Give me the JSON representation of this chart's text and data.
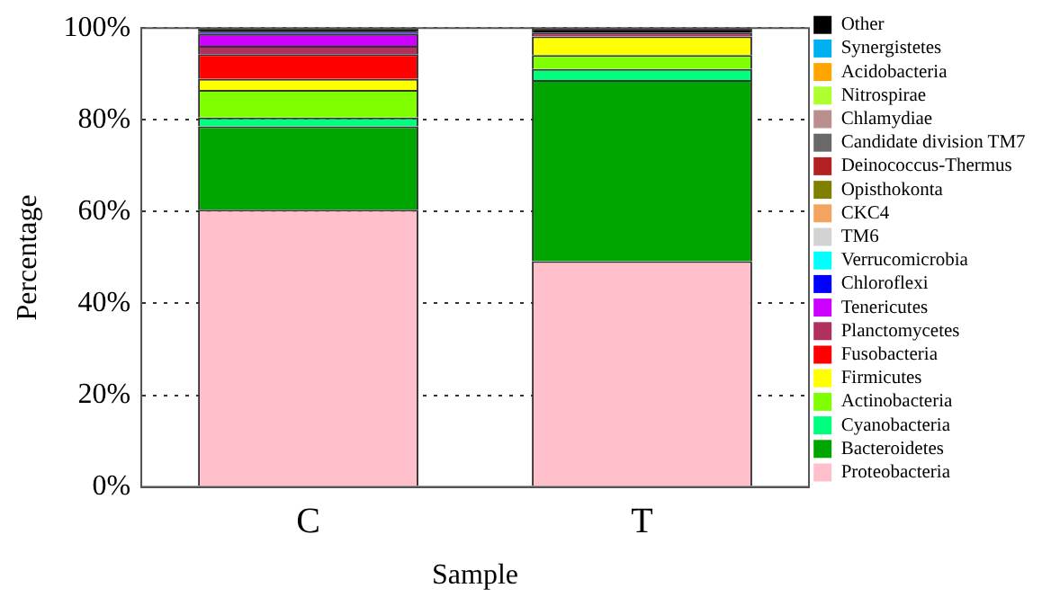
{
  "chart_data": {
    "type": "bar",
    "stacked": true,
    "xlabel": "Sample",
    "ylabel": "Percentage",
    "categories": [
      "C",
      "T"
    ],
    "ylim": [
      0,
      100
    ],
    "yticks": [
      {
        "value": 0,
        "label": "0%"
      },
      {
        "value": 20,
        "label": "20%"
      },
      {
        "value": 40,
        "label": "40%"
      },
      {
        "value": 60,
        "label": "60%"
      },
      {
        "value": 80,
        "label": "80%"
      },
      {
        "value": 100,
        "label": "100%"
      }
    ],
    "grid": "y",
    "legend": "right",
    "series": [
      {
        "name": "Proteobacteria",
        "color": "#ffc0cb",
        "values": [
          60.4,
          49.2
        ]
      },
      {
        "name": "Bacteroidetes",
        "color": "#00a600",
        "values": [
          18.2,
          39.5
        ]
      },
      {
        "name": "Cyanobacteria",
        "color": "#00ff7f",
        "values": [
          1.9,
          2.4
        ]
      },
      {
        "name": "Actinobacteria",
        "color": "#7fff00",
        "values": [
          6.0,
          3.0
        ]
      },
      {
        "name": "Firmicutes",
        "color": "#ffff00",
        "values": [
          2.4,
          4.1
        ]
      },
      {
        "name": "Fusobacteria",
        "color": "#ff0000",
        "values": [
          5.4,
          0
        ]
      },
      {
        "name": "Planctomycetes",
        "color": "#b03060",
        "values": [
          1.8,
          0.8
        ]
      },
      {
        "name": "Tenericutes",
        "color": "#cc00ff",
        "values": [
          2.6,
          0
        ]
      },
      {
        "name": "Chloroflexi",
        "color": "#0000ff",
        "values": [
          0.4,
          0
        ]
      },
      {
        "name": "Verrucomicrobia",
        "color": "#00ffff",
        "values": [
          0,
          0
        ]
      },
      {
        "name": "TM6",
        "color": "#d3d3d3",
        "values": [
          0,
          0
        ]
      },
      {
        "name": "CKC4",
        "color": "#f4a460",
        "values": [
          0,
          0
        ]
      },
      {
        "name": "Opisthokonta",
        "color": "#808000",
        "values": [
          0,
          0
        ]
      },
      {
        "name": "Deinococcus-Thermus",
        "color": "#b22222",
        "values": [
          0,
          0
        ]
      },
      {
        "name": "Candidate division TM7",
        "color": "#696969",
        "values": [
          0,
          0
        ]
      },
      {
        "name": "Chlamydiae",
        "color": "#bc8f8f",
        "values": [
          0,
          0
        ]
      },
      {
        "name": "Nitrospirae",
        "color": "#adff2f",
        "values": [
          0,
          0
        ]
      },
      {
        "name": "Acidobacteria",
        "color": "#ffa500",
        "values": [
          0,
          0
        ]
      },
      {
        "name": "Synergistetes",
        "color": "#00b0f0",
        "values": [
          0,
          0
        ]
      },
      {
        "name": "Other",
        "color": "#000000",
        "values": [
          0.9,
          1.0
        ]
      }
    ]
  }
}
